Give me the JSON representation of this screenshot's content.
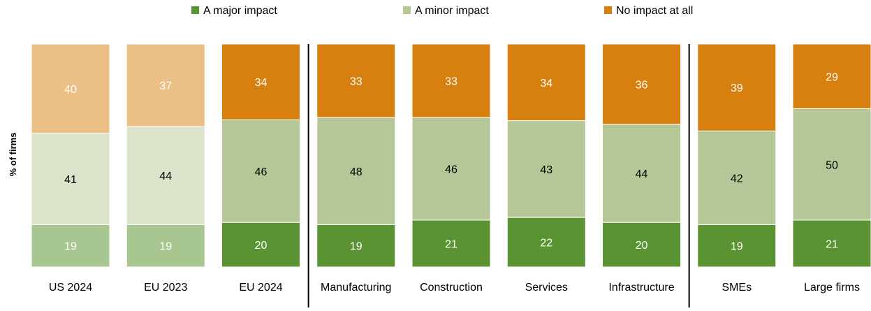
{
  "chart_data": {
    "type": "bar",
    "stacked": true,
    "title": "",
    "xlabel": "",
    "ylabel": "% of firms",
    "ylim": [
      0,
      100
    ],
    "grid": false,
    "legend_position": "top",
    "categories": [
      "US 2024",
      "EU 2023",
      "EU 2024",
      "Manufacturing",
      "Construction",
      "Services",
      "Infrastructure",
      "SMEs",
      "Large firms"
    ],
    "faded_categories": [
      "US 2024",
      "EU 2023"
    ],
    "group_separators_after": [
      "EU 2024",
      "Infrastructure"
    ],
    "series": [
      {
        "name": "A major impact",
        "values": [
          19,
          19,
          20,
          19,
          21,
          22,
          20,
          19,
          21
        ],
        "color": "#5a9331",
        "faded_color": "#a8c690",
        "label_color": "#ffffff"
      },
      {
        "name": "A minor impact",
        "values": [
          41,
          44,
          46,
          48,
          46,
          43,
          44,
          42,
          50
        ],
        "color": "#b5c796",
        "faded_color": "#dbe3cb",
        "label_color": "#000000"
      },
      {
        "name": "No impact at all",
        "values": [
          40,
          37,
          34,
          33,
          33,
          34,
          36,
          39,
          29
        ],
        "color": "#d8800f",
        "faded_color": "#ebbf86",
        "label_color": "#ffffff"
      }
    ]
  }
}
